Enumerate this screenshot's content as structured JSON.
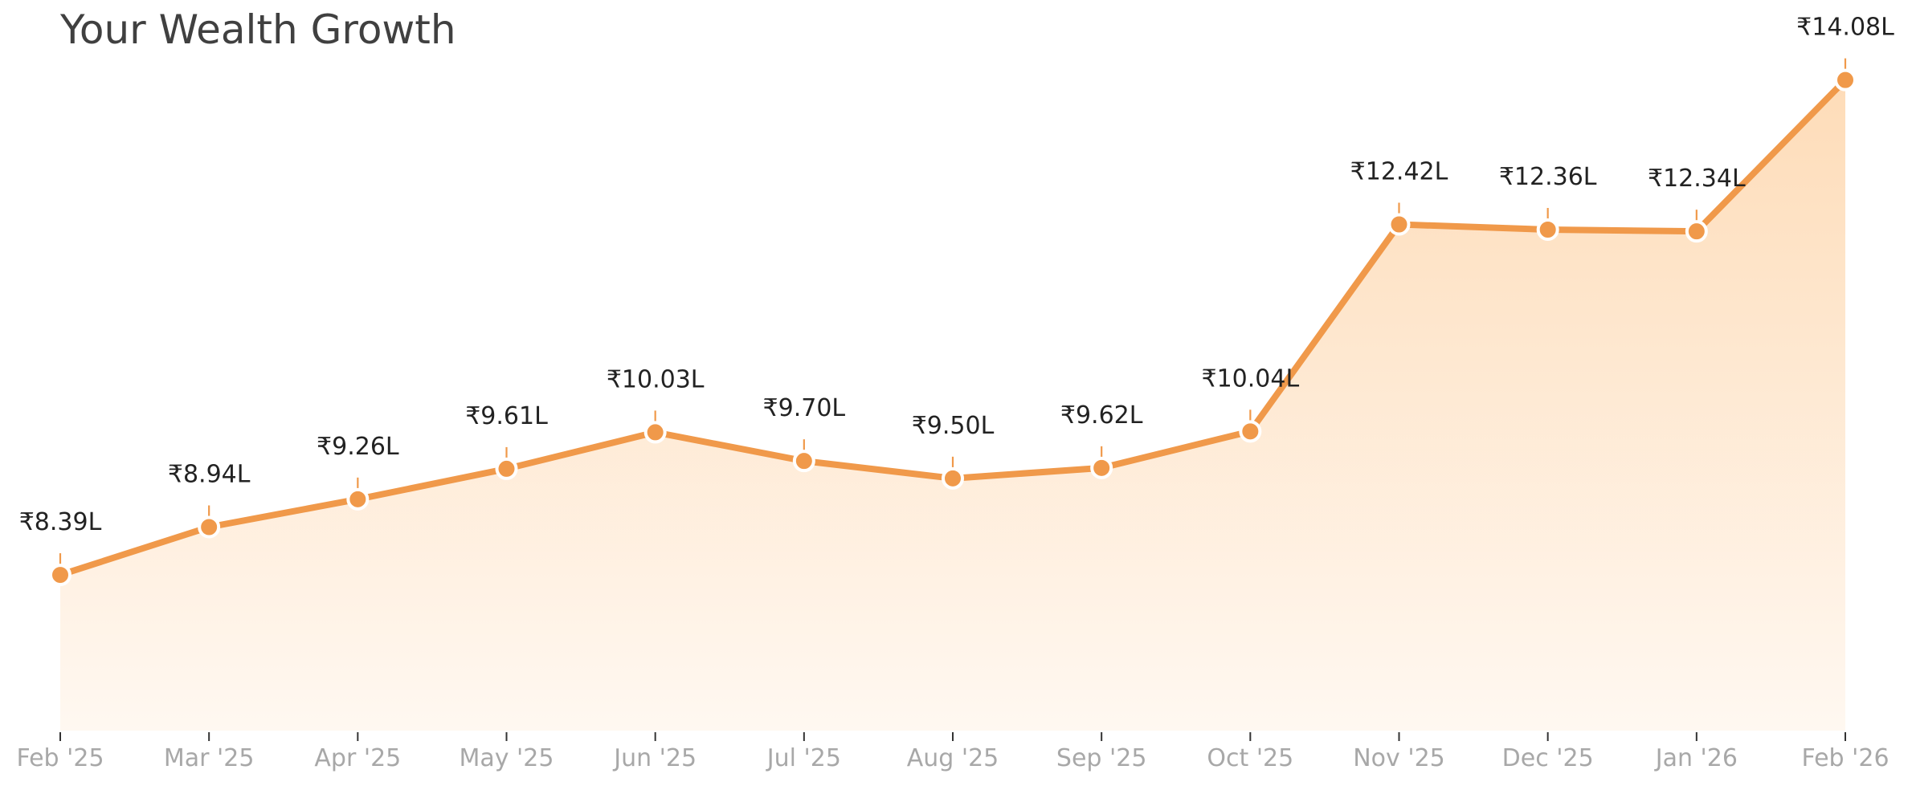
{
  "colors": {
    "line": "#f0994a",
    "fill_top": "#fedcb8",
    "fill_bottom": "#fff8f1",
    "marker_edge": "#ffffff",
    "tick_text": "#a8a8a8",
    "label_text": "#222222",
    "title_text": "#404040"
  },
  "chart_data": {
    "type": "area",
    "title": "Your Wealth Growth",
    "xlabel": "",
    "ylabel": "",
    "grid": false,
    "legend": "none",
    "ylim": [
      6.6,
      15.0
    ],
    "categories": [
      "Feb '25",
      "Mar '25",
      "Apr '25",
      "May '25",
      "Jun '25",
      "Jul '25",
      "Aug '25",
      "Sep '25",
      "Oct '25",
      "Nov '25",
      "Dec '25",
      "Jan '26",
      "Feb '26"
    ],
    "series": [
      {
        "values": [
          8.39,
          8.94,
          9.26,
          9.61,
          10.03,
          9.7,
          9.5,
          9.62,
          10.04,
          12.42,
          12.36,
          12.34,
          14.08
        ],
        "labels": [
          "₹8.39L",
          "₹8.94L",
          "₹9.26L",
          "₹9.61L",
          "₹10.03L",
          "₹9.70L",
          "₹9.50L",
          "₹9.62L",
          "₹10.04L",
          "₹12.42L",
          "₹12.36L",
          "₹12.34L",
          "₹14.08L"
        ]
      }
    ]
  }
}
